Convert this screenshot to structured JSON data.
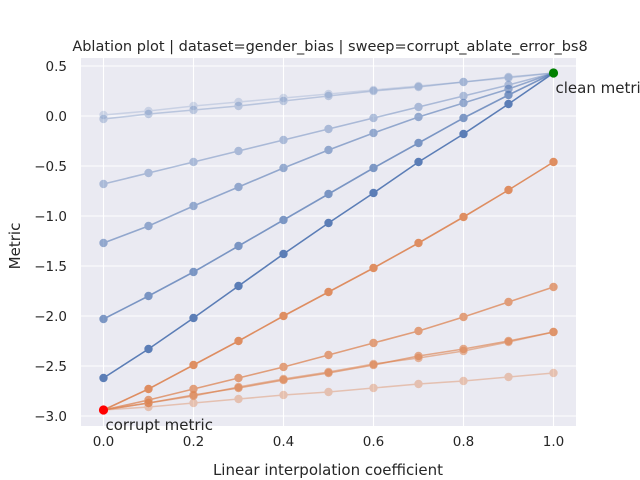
{
  "chart_data": {
    "type": "line",
    "title": "Ablation plot | dataset=gender_bias | sweep=corrupt_ablate_error_bs8",
    "xlabel": "Linear interpolation coefficient",
    "ylabel": "Metric",
    "xlim": [
      -0.05,
      1.05
    ],
    "ylim": [
      -3.1,
      0.58
    ],
    "xticks": [
      0.0,
      0.2,
      0.4,
      0.6,
      0.8,
      1.0
    ],
    "xtick_labels": [
      "0.0",
      "0.2",
      "0.4",
      "0.6",
      "0.8",
      "1.0"
    ],
    "yticks": [
      -3.0,
      -2.5,
      -2.0,
      -1.5,
      -1.0,
      -0.5,
      0.0,
      0.5
    ],
    "ytick_labels": [
      "−3.0",
      "−2.5",
      "−2.0",
      "−1.5",
      "−1.0",
      "−0.5",
      "0.0",
      "0.5"
    ],
    "grid": true,
    "background": "#eaeaf2",
    "x": [
      0.0,
      0.1,
      0.2,
      0.3,
      0.4,
      0.5,
      0.6,
      0.7,
      0.8,
      0.9,
      1.0
    ],
    "series": [
      {
        "color": "#4c72b0",
        "alpha": 0.2,
        "values": [
          0.01,
          0.05,
          0.1,
          0.14,
          0.18,
          0.22,
          0.26,
          0.3,
          0.34,
          0.38,
          0.43
        ]
      },
      {
        "color": "#4c72b0",
        "alpha": 0.3,
        "values": [
          -0.03,
          0.02,
          0.06,
          0.1,
          0.15,
          0.2,
          0.25,
          0.29,
          0.34,
          0.39,
          0.43
        ]
      },
      {
        "color": "#4c72b0",
        "alpha": 0.4,
        "values": [
          -0.68,
          -0.57,
          -0.46,
          -0.35,
          -0.24,
          -0.13,
          -0.02,
          0.09,
          0.2,
          0.31,
          0.43
        ]
      },
      {
        "color": "#4c72b0",
        "alpha": 0.55,
        "values": [
          -1.27,
          -1.1,
          -0.9,
          -0.71,
          -0.52,
          -0.34,
          -0.17,
          -0.01,
          0.13,
          0.27,
          0.43
        ]
      },
      {
        "color": "#4c72b0",
        "alpha": 0.7,
        "values": [
          -2.03,
          -1.8,
          -1.56,
          -1.3,
          -1.04,
          -0.78,
          -0.52,
          -0.27,
          -0.02,
          0.21,
          0.43
        ]
      },
      {
        "color": "#4c72b0",
        "alpha": 0.9,
        "values": [
          -2.62,
          -2.33,
          -2.02,
          -1.7,
          -1.38,
          -1.07,
          -0.77,
          -0.46,
          -0.18,
          0.12,
          0.43
        ]
      },
      {
        "color": "#dd8452",
        "alpha": 0.9,
        "values": [
          -2.94,
          -2.73,
          -2.49,
          -2.25,
          -2.0,
          -1.76,
          -1.52,
          -1.27,
          -1.01,
          -0.74,
          -0.46
        ]
      },
      {
        "color": "#dd8452",
        "alpha": 0.75,
        "values": [
          -2.94,
          -2.84,
          -2.73,
          -2.62,
          -2.51,
          -2.39,
          -2.27,
          -2.15,
          -2.01,
          -1.86,
          -1.71
        ]
      },
      {
        "color": "#dd8452",
        "alpha": 0.65,
        "values": [
          -2.94,
          -2.87,
          -2.79,
          -2.72,
          -2.64,
          -2.57,
          -2.49,
          -2.4,
          -2.33,
          -2.25,
          -2.16
        ]
      },
      {
        "color": "#dd8452",
        "alpha": 0.55,
        "values": [
          -2.94,
          -2.87,
          -2.8,
          -2.71,
          -2.63,
          -2.56,
          -2.48,
          -2.42,
          -2.35,
          -2.26,
          -2.16
        ]
      },
      {
        "color": "#dd8452",
        "alpha": 0.4,
        "values": [
          -2.94,
          -2.91,
          -2.87,
          -2.83,
          -2.79,
          -2.76,
          -2.72,
          -2.68,
          -2.65,
          -2.61,
          -2.57
        ]
      }
    ],
    "highlight_points": [
      {
        "x": 1.0,
        "y": 0.43,
        "color": "#008000"
      },
      {
        "x": 0.0,
        "y": -2.94,
        "color": "#ff0000"
      }
    ],
    "annotations": [
      {
        "text": "clean metric",
        "x": 1.0,
        "y": 0.43,
        "anchor": "below-right"
      },
      {
        "text": "corrupt metric",
        "x": 0.0,
        "y": -2.94,
        "anchor": "below-right"
      }
    ]
  }
}
